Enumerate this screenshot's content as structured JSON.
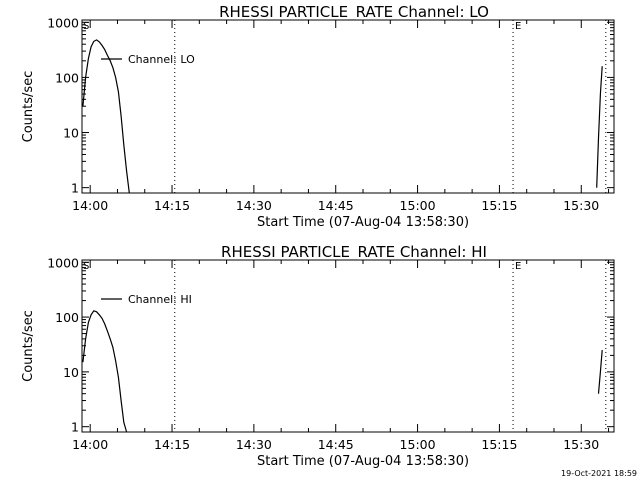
{
  "stamp": "19-Oct-2021 18:59",
  "chart_data": [
    {
      "type": "line",
      "title": "RHESSI PARTICLE_RATE Channel: LO",
      "xlabel": "Start Time (07-Aug-04 13:58:30)",
      "ylabel": "Counts/sec",
      "yscale": "log",
      "ylim": [
        0.8,
        1100
      ],
      "xlim": [
        "13:58:30",
        "15:36:00"
      ],
      "x_ticks": [
        "14:00",
        "14:15",
        "14:30",
        "14:45",
        "15:00",
        "15:15",
        "15:30"
      ],
      "y_ticks": [
        {
          "v": 1,
          "t": "1"
        },
        {
          "v": 10,
          "t": "10"
        },
        {
          "v": 100,
          "t": "100"
        },
        {
          "v": 1000,
          "t": "1000"
        }
      ],
      "legend": {
        "label": "Channel: LO",
        "position": "top-left"
      },
      "vlines": [
        {
          "x": "14:15:30"
        },
        {
          "x": "15:17:30",
          "label": "E"
        },
        {
          "x": "15:34:30"
        }
      ],
      "start_marker": "S",
      "series": [
        {
          "name": "Channel: LO",
          "segments": [
            [
              [
                "13:58:40",
                30
              ],
              [
                "13:59:10",
                100
              ],
              [
                "13:59:40",
                220
              ],
              [
                "14:00:10",
                360
              ],
              [
                "14:00:40",
                450
              ],
              [
                "14:01:10",
                480
              ],
              [
                "14:01:40",
                440
              ],
              [
                "14:02:10",
                380
              ],
              [
                "14:02:40",
                320
              ],
              [
                "14:03:10",
                250
              ],
              [
                "14:03:40",
                200
              ],
              [
                "14:04:10",
                150
              ],
              [
                "14:04:40",
                100
              ],
              [
                "14:05:10",
                55
              ],
              [
                "14:05:40",
                20
              ],
              [
                "14:06:10",
                6
              ],
              [
                "14:06:40",
                2
              ],
              [
                "14:07:10",
                0.8
              ]
            ],
            [
              [
                "15:32:50",
                1
              ],
              [
                "15:33:10",
                8
              ],
              [
                "15:33:30",
                50
              ],
              [
                "15:33:50",
                160
              ]
            ]
          ]
        }
      ]
    },
    {
      "type": "line",
      "title": "RHESSI PARTICLE_RATE Channel: HI",
      "xlabel": "Start Time (07-Aug-04 13:58:30)",
      "ylabel": "Counts/sec",
      "yscale": "log",
      "ylim": [
        0.8,
        1100
      ],
      "xlim": [
        "13:58:30",
        "15:36:00"
      ],
      "x_ticks": [
        "14:00",
        "14:15",
        "14:30",
        "14:45",
        "15:00",
        "15:15",
        "15:30"
      ],
      "y_ticks": [
        {
          "v": 1,
          "t": "1"
        },
        {
          "v": 10,
          "t": "10"
        },
        {
          "v": 100,
          "t": "100"
        },
        {
          "v": 1000,
          "t": "1000"
        }
      ],
      "legend": {
        "label": "Channel: HI",
        "position": "top-left"
      },
      "vlines": [
        {
          "x": "14:15:30"
        },
        {
          "x": "15:17:30",
          "label": "E"
        },
        {
          "x": "15:34:30"
        }
      ],
      "start_marker": "S",
      "series": [
        {
          "name": "Channel: HI",
          "segments": [
            [
              [
                "13:58:40",
                15
              ],
              [
                "13:59:10",
                40
              ],
              [
                "13:59:40",
                80
              ],
              [
                "14:00:10",
                110
              ],
              [
                "14:00:40",
                130
              ],
              [
                "14:01:10",
                125
              ],
              [
                "14:01:40",
                110
              ],
              [
                "14:02:10",
                95
              ],
              [
                "14:02:40",
                75
              ],
              [
                "14:03:10",
                55
              ],
              [
                "14:03:40",
                40
              ],
              [
                "14:04:10",
                28
              ],
              [
                "14:04:40",
                16
              ],
              [
                "14:05:10",
                8
              ],
              [
                "14:05:40",
                3
              ],
              [
                "14:06:10",
                1.2
              ],
              [
                "14:06:40",
                0.8
              ]
            ],
            [
              [
                "15:33:10",
                4
              ],
              [
                "15:33:30",
                10
              ],
              [
                "15:33:50",
                25
              ]
            ]
          ]
        }
      ]
    }
  ]
}
